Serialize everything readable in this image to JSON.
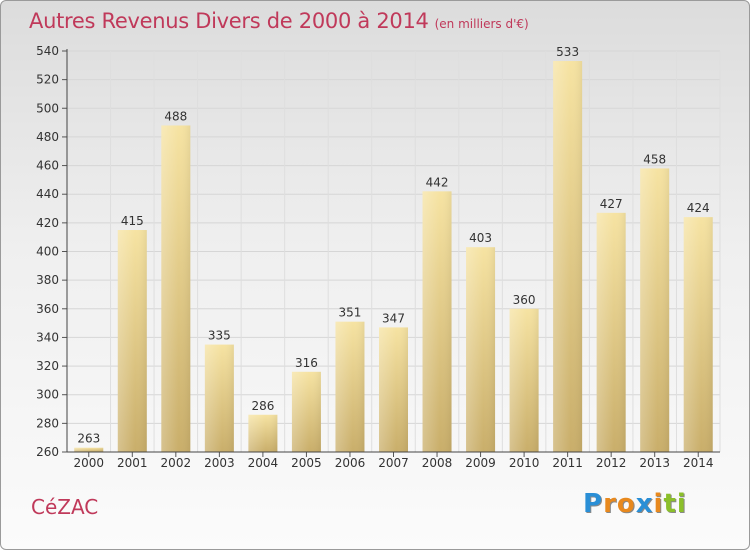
{
  "title": "Autres Revenus Divers de 2000 à 2014",
  "subtitle": "(en milliers d'€)",
  "commune": "CéZAC",
  "logo": {
    "letters": [
      "P",
      "r",
      "o",
      "x",
      "i",
      "t",
      "i"
    ],
    "colors": [
      "#2a8fd6",
      "#e8891e",
      "#e8891e",
      "#2a8fd6",
      "#e8891e",
      "#8bbf2a",
      "#8bbf2a"
    ]
  },
  "colors": {
    "title": "#c0395a",
    "bar_light": "#f6e3a2",
    "bar_dark": "#c9ae6a"
  },
  "chart_data": {
    "type": "bar",
    "title": "Autres Revenus Divers de 2000 à 2014",
    "categories": [
      "2000",
      "2001",
      "2002",
      "2003",
      "2004",
      "2005",
      "2006",
      "2007",
      "2008",
      "2009",
      "2010",
      "2011",
      "2012",
      "2013",
      "2014"
    ],
    "values": [
      263,
      415,
      488,
      335,
      286,
      316,
      351,
      347,
      442,
      403,
      360,
      533,
      427,
      458,
      424
    ],
    "ylim": [
      260,
      540
    ],
    "yticks": [
      260,
      280,
      300,
      320,
      340,
      360,
      380,
      400,
      420,
      440,
      460,
      480,
      500,
      520,
      540
    ],
    "grid": true,
    "data_labels": true
  }
}
